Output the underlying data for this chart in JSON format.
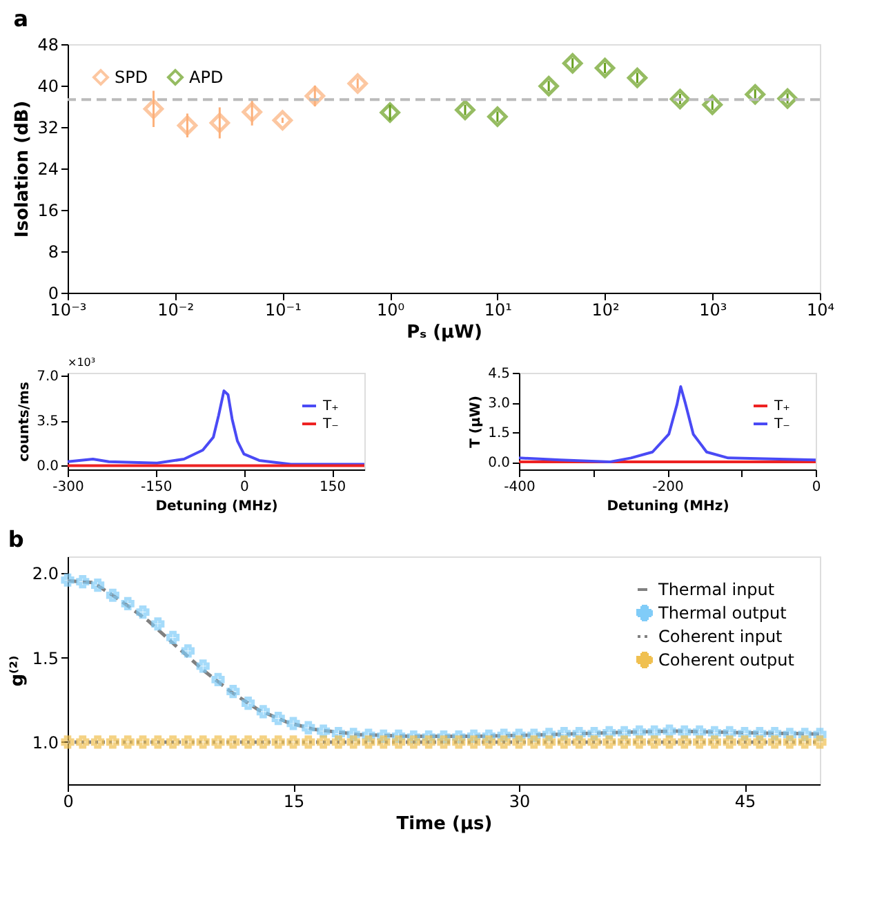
{
  "chart_data": [
    {
      "type": "scatter",
      "title": "a",
      "xlabel": "Pₛ (μW)",
      "ylabel": "Isolation (dB)",
      "log": "x",
      "xlim": [
        0.001,
        10000
      ],
      "ylim": [
        0,
        48
      ],
      "legend": "top left",
      "marker": "diamond",
      "xticks": [
        {
          "value": 0.001,
          "label": "10⁻³"
        },
        {
          "value": 0.01,
          "label": "10⁻²"
        },
        {
          "value": 0.1,
          "label": "10⁻¹"
        },
        {
          "value": 1,
          "label": "10⁰"
        },
        {
          "value": 10,
          "label": "10¹"
        },
        {
          "value": 100,
          "label": "10²"
        },
        {
          "value": 1000,
          "label": "10³"
        },
        {
          "value": 10000,
          "label": "10⁴"
        }
      ],
      "yticks": [
        0,
        8,
        16,
        24,
        32,
        40,
        48
      ],
      "ref_lines": [
        {
          "axis": "y",
          "value": 37.3,
          "color": "#bbbbbb",
          "line_style": "dashed"
        }
      ],
      "series": [
        {
          "name": "SPD",
          "color": "#fcb07a",
          "x": [
            0.0063,
            0.013,
            0.026,
            0.052,
            0.1,
            0.2,
            0.5
          ],
          "values": [
            35.5,
            32.3,
            32.8,
            34.9,
            33.3,
            38.0,
            40.4
          ],
          "errors": [
            3.5,
            2.3,
            3.0,
            2.6,
            0.5,
            2.0,
            1.0
          ]
        },
        {
          "name": "APD",
          "color": "#6aa121",
          "x": [
            1,
            5,
            10,
            30,
            50,
            100,
            200,
            500,
            1000,
            2500,
            5000
          ],
          "values": [
            34.8,
            35.3,
            34.0,
            39.9,
            44.3,
            43.4,
            41.5,
            37.4,
            36.3,
            38.3,
            37.5
          ],
          "errors": [
            1.5,
            1,
            1,
            1,
            1,
            1,
            1,
            1,
            1,
            1,
            1
          ]
        }
      ]
    },
    {
      "type": "line",
      "xlabel": "Detuning (MHz)",
      "ylabel": "counts/ms",
      "annotations": [
        "×10³"
      ],
      "xlim": [
        -300,
        205
      ],
      "ylim": [
        -0.3,
        7.2
      ],
      "legend": "top right",
      "line_style": "solid",
      "xticks": [
        -300,
        -150,
        0,
        150
      ],
      "yticks": [
        {
          "value": 0,
          "label": "0.0"
        },
        {
          "value": 3.5,
          "label": "3.5"
        },
        {
          "value": 7,
          "label": "7.0"
        }
      ],
      "series": [
        {
          "name": "T₊",
          "color": "#4a4af5",
          "x": [
            -300,
            -257,
            -230,
            -148,
            -102,
            -70,
            -52,
            -43,
            -34,
            -27,
            -20,
            -11,
            0,
            26,
            80,
            205
          ],
          "values": [
            0.3,
            0.5,
            0.3,
            0.2,
            0.5,
            1.2,
            2.2,
            3.9,
            5.8,
            5.5,
            3.6,
            1.9,
            0.9,
            0.4,
            0.1,
            0.1
          ]
        },
        {
          "name": "T₋",
          "color": "#ee2222",
          "x": [
            -300,
            205
          ],
          "values": [
            0.0,
            0.0
          ]
        }
      ]
    },
    {
      "type": "line",
      "xlabel": "Detuning (MHz)",
      "ylabel": "T (μW)",
      "xlim": [
        -400,
        0
      ],
      "ylim": [
        -0.38,
        4.5
      ],
      "legend": "top right",
      "line_style": "solid",
      "xticks": [
        -400,
        {
          "value": -300,
          "label": null
        },
        -200,
        {
          "value": -100,
          "label": null
        },
        0
      ],
      "yticks": [
        {
          "value": 0,
          "label": "0.0"
        },
        1.5,
        {
          "value": 3,
          "label": "3.0"
        },
        {
          "value": 4.5,
          "label": "4.5"
        }
      ],
      "series": [
        {
          "name": "T₊",
          "color": "#ee2222",
          "x": [
            -400,
            0
          ],
          "values": [
            0.0,
            0.0
          ]
        },
        {
          "name": "T₋",
          "color": "#4a4af5",
          "x": [
            -400,
            -344,
            -278,
            -249,
            -220,
            -198,
            -187,
            -182,
            -176,
            -165,
            -147,
            -118,
            0
          ],
          "values": [
            0.2,
            0.1,
            0.0,
            0.2,
            0.5,
            1.4,
            2.9,
            3.8,
            3.0,
            1.4,
            0.5,
            0.2,
            0.1
          ]
        }
      ]
    },
    {
      "type": "line",
      "title": "b",
      "xlabel": "Time (μs)",
      "ylabel": "g⁽²⁾",
      "xlim": [
        0,
        50
      ],
      "ylim": [
        0.75,
        2.1
      ],
      "legend": "top right",
      "xticks": [
        0,
        15,
        30,
        45
      ],
      "yticks": [
        {
          "value": 1,
          "label": "1.0"
        },
        {
          "value": 1.5,
          "label": "1.5"
        },
        {
          "value": 2,
          "label": "2.0"
        }
      ],
      "series": [
        {
          "name": "Thermal input",
          "type": "line",
          "line_style": "dashed",
          "color": "#808080",
          "x": [
            0,
            1.7,
            3.5,
            5.4,
            7.2,
            9.1,
            10.9,
            12.7,
            14.6,
            16.4,
            19.4,
            23,
            26.7,
            30.4,
            34.1,
            37.8,
            40.4,
            45,
            50
          ],
          "values": [
            1.956,
            1.945,
            1.84,
            1.715,
            1.57,
            1.42,
            1.295,
            1.19,
            1.117,
            1.075,
            1.044,
            1.034,
            1.034,
            1.04,
            1.05,
            1.06,
            1.065,
            1.055,
            1.048
          ]
        },
        {
          "name": "Thermal output",
          "type": "scatter",
          "marker": "cross",
          "color": "#80ccf8",
          "x": [
            0,
            1,
            2,
            3,
            4,
            5,
            6,
            7,
            8,
            9,
            10,
            11,
            12,
            13,
            14,
            15,
            16,
            17,
            18,
            19,
            20,
            21,
            22,
            23,
            24,
            25,
            26,
            27,
            28,
            29,
            30,
            31,
            32,
            33,
            34,
            35,
            36,
            37,
            38,
            39,
            40,
            41,
            42,
            43,
            44,
            45,
            46,
            47,
            48,
            49,
            50
          ],
          "values": [
            1.96,
            1.95,
            1.93,
            1.87,
            1.82,
            1.77,
            1.7,
            1.62,
            1.54,
            1.45,
            1.37,
            1.3,
            1.23,
            1.18,
            1.14,
            1.11,
            1.085,
            1.065,
            1.05,
            1.045,
            1.04,
            1.035,
            1.035,
            1.03,
            1.03,
            1.03,
            1.03,
            1.035,
            1.035,
            1.04,
            1.04,
            1.04,
            1.045,
            1.05,
            1.05,
            1.05,
            1.055,
            1.055,
            1.06,
            1.06,
            1.065,
            1.06,
            1.06,
            1.055,
            1.055,
            1.05,
            1.05,
            1.05,
            1.045,
            1.045,
            1.045
          ]
        },
        {
          "name": "Coherent input",
          "type": "line",
          "line_style": "dotted",
          "color": "#808080",
          "x": [
            0,
            50
          ],
          "values": [
            1.0,
            1.0
          ]
        },
        {
          "name": "Coherent output",
          "type": "scatter",
          "marker": "cross",
          "color": "#f0c050",
          "x": [
            0,
            1,
            2,
            3,
            4,
            5,
            6,
            7,
            8,
            9,
            10,
            11,
            12,
            13,
            14,
            15,
            16,
            17,
            18,
            19,
            20,
            21,
            22,
            23,
            24,
            25,
            26,
            27,
            28,
            29,
            30,
            31,
            32,
            33,
            34,
            35,
            36,
            37,
            38,
            39,
            40,
            41,
            42,
            43,
            44,
            45,
            46,
            47,
            48,
            49,
            50
          ],
          "values": [
            1.0,
            1.0,
            1.0,
            1.0,
            1.0,
            1.0,
            1.0,
            1.0,
            1.0,
            1.0,
            1.0,
            1.0,
            1.0,
            1.0,
            1.0,
            1.0,
            1.0,
            1.0,
            1.0,
            1.0,
            1.0,
            1.0,
            1.0,
            1.0,
            1.0,
            1.0,
            1.0,
            1.0,
            1.0,
            1.0,
            1.0,
            1.0,
            1.0,
            1.0,
            1.0,
            1.0,
            1.0,
            1.0,
            1.0,
            1.0,
            1.0,
            1.0,
            1.0,
            1.0,
            1.0,
            1.0,
            1.0,
            1.0,
            1.0,
            1.0,
            1.0
          ]
        }
      ]
    }
  ]
}
